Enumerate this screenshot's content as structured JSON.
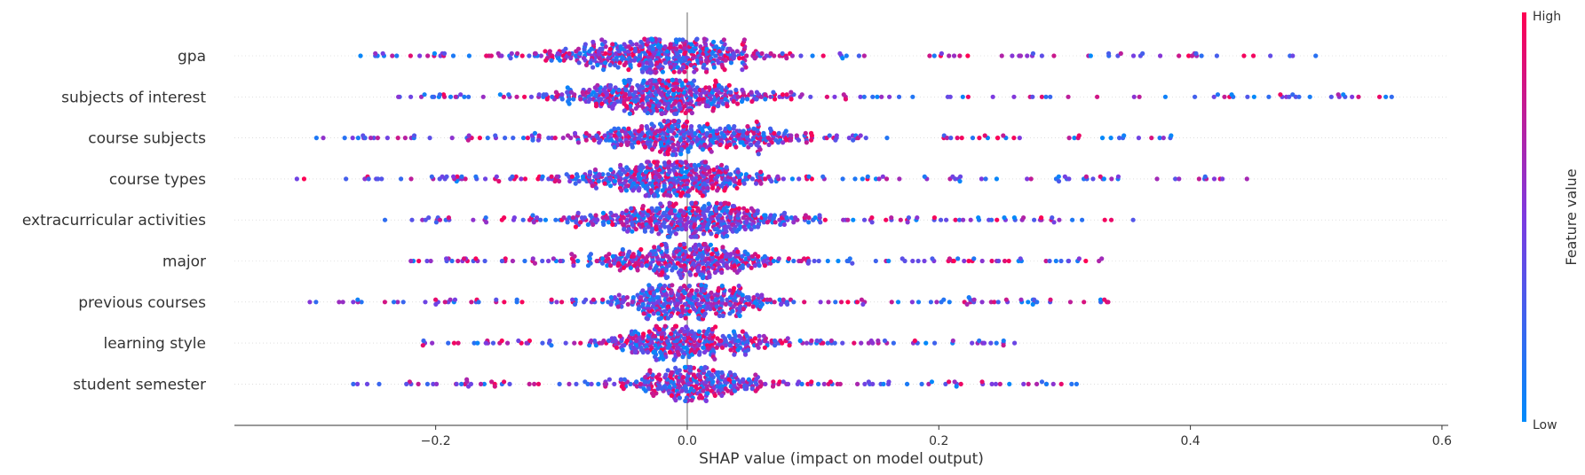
{
  "chart_data": {
    "type": "scatter",
    "subtype": "shap-beeswarm",
    "xlabel": "SHAP value (impact on model output)",
    "xlim": [
      -0.36,
      0.605
    ],
    "xticks": [
      -0.2,
      0.0,
      0.2,
      0.4,
      0.6
    ],
    "xtick_labels": [
      "−0.2",
      "0.0",
      "0.2",
      "0.4",
      "0.6"
    ],
    "features": [
      {
        "name": "gpa",
        "min": -0.26,
        "max": 0.5,
        "spread": 0.08,
        "bulge": 1.0,
        "center": -0.02
      },
      {
        "name": "subjects of interest",
        "min": -0.23,
        "max": 0.56,
        "spread": 0.08,
        "bulge": 1.0,
        "center": -0.02
      },
      {
        "name": "course subjects",
        "min": -0.295,
        "max": 0.385,
        "spread": 0.09,
        "bulge": 0.9,
        "center": 0.0
      },
      {
        "name": "course types",
        "min": -0.31,
        "max": 0.445,
        "spread": 0.07,
        "bulge": 1.0,
        "center": -0.01
      },
      {
        "name": "extracurricular activities",
        "min": -0.24,
        "max": 0.355,
        "spread": 0.08,
        "bulge": 1.0,
        "center": 0.0
      },
      {
        "name": "major",
        "min": -0.22,
        "max": 0.33,
        "spread": 0.07,
        "bulge": 0.8,
        "center": 0.0
      },
      {
        "name": "previous courses",
        "min": -0.3,
        "max": 0.335,
        "spread": 0.06,
        "bulge": 0.8,
        "center": 0.0
      },
      {
        "name": "learning style",
        "min": -0.21,
        "max": 0.26,
        "spread": 0.06,
        "bulge": 0.7,
        "center": 0.0
      },
      {
        "name": "student semester",
        "min": -0.265,
        "max": 0.31,
        "spread": 0.05,
        "bulge": 0.6,
        "center": 0.0
      }
    ],
    "colorbar": {
      "title": "Feature value",
      "high_label": "High",
      "low_label": "Low",
      "low_color": "#008bfb",
      "high_color": "#ff0052"
    },
    "grid": false,
    "legend": "colorbar-right"
  }
}
